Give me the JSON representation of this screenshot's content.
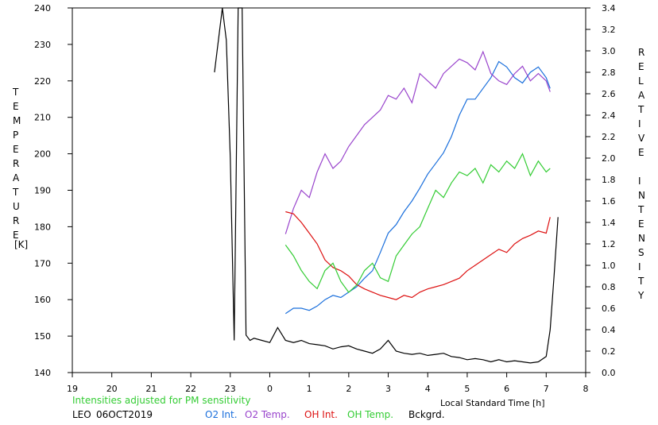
{
  "chart_data": {
    "type": "line",
    "station": "LEO",
    "date": "06OCT2019",
    "note": "Intensities adjusted for PM sensitivity",
    "xlabel": "Local Standard Time [h]",
    "ylabel_left": "TEMPERATURE",
    "ylabel_left_unit": "[K]",
    "ylabel_right": "RELATIVE INTENSITY",
    "xlim": [
      19,
      32
    ],
    "x_ticks": [
      "19",
      "20",
      "21",
      "22",
      "23",
      "0",
      "1",
      "2",
      "3",
      "4",
      "5",
      "6",
      "7",
      "8"
    ],
    "ylim_left": [
      140,
      240
    ],
    "y_ticks_left": [
      "140",
      "150",
      "160",
      "170",
      "180",
      "190",
      "200",
      "210",
      "220",
      "230",
      "240"
    ],
    "ylim_right": [
      0.0,
      3.4
    ],
    "y_ticks_right": [
      "0.0",
      "0.2",
      "0.4",
      "0.6",
      "0.8",
      "1.0",
      "1.2",
      "1.4",
      "1.6",
      "1.8",
      "2.0",
      "2.2",
      "2.4",
      "2.6",
      "2.8",
      "3.0",
      "3.2",
      "3.4"
    ],
    "grid": false,
    "legend_position": "bottom",
    "series": [
      {
        "name": "O2 Int.",
        "axis": "right",
        "color": "#1a6fdc",
        "x": [
          24.4,
          24.6,
          24.8,
          25.0,
          25.2,
          25.4,
          25.6,
          25.8,
          26.0,
          26.2,
          26.4,
          26.6,
          26.8,
          27.0,
          27.2,
          27.4,
          27.6,
          27.8,
          28.0,
          28.2,
          28.4,
          28.6,
          28.8,
          29.0,
          29.2,
          29.4,
          29.6,
          29.8,
          30.0,
          30.2,
          30.4,
          30.6,
          30.8,
          31.0,
          31.1
        ],
        "values": [
          0.55,
          0.6,
          0.6,
          0.58,
          0.62,
          0.68,
          0.72,
          0.7,
          0.75,
          0.8,
          0.88,
          0.95,
          1.12,
          1.3,
          1.38,
          1.5,
          1.6,
          1.72,
          1.85,
          1.95,
          2.05,
          2.2,
          2.4,
          2.55,
          2.55,
          2.65,
          2.75,
          2.9,
          2.85,
          2.75,
          2.7,
          2.8,
          2.85,
          2.75,
          2.65
        ]
      },
      {
        "name": "O2 Temp.",
        "axis": "left",
        "color": "#9944cc",
        "x": [
          24.4,
          24.6,
          24.8,
          25.0,
          25.2,
          25.4,
          25.6,
          25.8,
          26.0,
          26.2,
          26.4,
          26.6,
          26.8,
          27.0,
          27.2,
          27.4,
          27.6,
          27.8,
          28.0,
          28.2,
          28.4,
          28.6,
          28.8,
          29.0,
          29.2,
          29.4,
          29.6,
          29.8,
          30.0,
          30.2,
          30.4,
          30.6,
          30.8,
          31.0,
          31.1
        ],
        "values": [
          178,
          185,
          190,
          188,
          195,
          200,
          196,
          198,
          202,
          205,
          208,
          210,
          212,
          216,
          215,
          218,
          214,
          222,
          220,
          218,
          222,
          224,
          226,
          225,
          223,
          228,
          222,
          220,
          219,
          222,
          224,
          220,
          222,
          220,
          217
        ]
      },
      {
        "name": "OH Int.",
        "axis": "right",
        "color": "#dd1111",
        "x": [
          24.4,
          24.6,
          24.8,
          25.0,
          25.2,
          25.4,
          25.6,
          25.8,
          26.0,
          26.2,
          26.4,
          26.6,
          26.8,
          27.0,
          27.2,
          27.4,
          27.6,
          27.8,
          28.0,
          28.2,
          28.4,
          28.6,
          28.8,
          29.0,
          29.2,
          29.4,
          29.6,
          29.8,
          30.0,
          30.2,
          30.4,
          30.6,
          30.8,
          31.0,
          31.1
        ],
        "values": [
          1.5,
          1.48,
          1.4,
          1.3,
          1.2,
          1.05,
          0.98,
          0.95,
          0.9,
          0.82,
          0.78,
          0.75,
          0.72,
          0.7,
          0.68,
          0.72,
          0.7,
          0.75,
          0.78,
          0.8,
          0.82,
          0.85,
          0.88,
          0.95,
          1.0,
          1.05,
          1.1,
          1.15,
          1.12,
          1.2,
          1.25,
          1.28,
          1.32,
          1.3,
          1.45
        ]
      },
      {
        "name": "OH Temp.",
        "axis": "left",
        "color": "#33cc33",
        "x": [
          24.4,
          24.6,
          24.8,
          25.0,
          25.2,
          25.4,
          25.6,
          25.8,
          26.0,
          26.2,
          26.4,
          26.6,
          26.8,
          27.0,
          27.2,
          27.4,
          27.6,
          27.8,
          28.0,
          28.2,
          28.4,
          28.6,
          28.8,
          29.0,
          29.2,
          29.4,
          29.6,
          29.8,
          30.0,
          30.2,
          30.4,
          30.6,
          30.8,
          31.0,
          31.1
        ],
        "values": [
          175,
          172,
          168,
          165,
          163,
          168,
          170,
          165,
          162,
          164,
          168,
          170,
          166,
          165,
          172,
          175,
          178,
          180,
          185,
          190,
          188,
          192,
          195,
          194,
          196,
          192,
          197,
          195,
          198,
          196,
          200,
          194,
          198,
          195,
          196
        ]
      },
      {
        "name": "Bckgrd.",
        "axis": "right",
        "color": "#000000",
        "x": [
          22.6,
          22.8,
          22.9,
          23.0,
          23.1,
          23.2,
          23.3,
          23.4,
          23.5,
          23.6,
          23.8,
          24.0,
          24.2,
          24.4,
          24.6,
          24.8,
          25.0,
          25.2,
          25.4,
          25.6,
          25.8,
          26.0,
          26.2,
          26.4,
          26.6,
          26.8,
          27.0,
          27.2,
          27.4,
          27.6,
          27.8,
          28.0,
          28.2,
          28.4,
          28.6,
          28.8,
          29.0,
          29.2,
          29.4,
          29.6,
          29.8,
          30.0,
          30.2,
          30.4,
          30.6,
          30.8,
          31.0,
          31.1,
          31.2,
          31.3
        ],
        "values": [
          2.8,
          3.4,
          3.1,
          2.0,
          0.3,
          3.4,
          3.4,
          0.35,
          0.3,
          0.32,
          0.3,
          0.28,
          0.42,
          0.3,
          0.28,
          0.3,
          0.27,
          0.26,
          0.25,
          0.22,
          0.24,
          0.25,
          0.22,
          0.2,
          0.18,
          0.22,
          0.3,
          0.2,
          0.18,
          0.17,
          0.18,
          0.16,
          0.17,
          0.18,
          0.15,
          0.14,
          0.12,
          0.13,
          0.12,
          0.1,
          0.12,
          0.1,
          0.11,
          0.1,
          0.09,
          0.1,
          0.15,
          0.4,
          0.9,
          1.45
        ]
      }
    ]
  }
}
